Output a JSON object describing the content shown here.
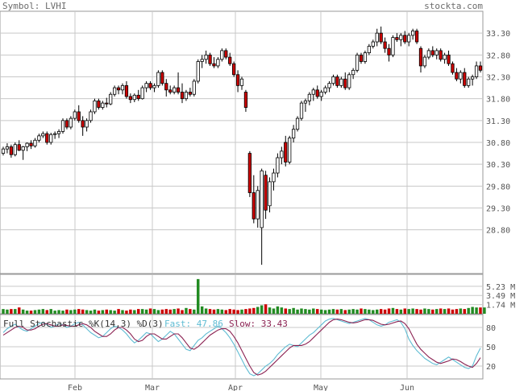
{
  "header": {
    "symbol_text": "Symbol: LVHI",
    "brand": "stockta.com"
  },
  "colors": {
    "up_candle": "#ffffff",
    "down_candle": "#cc0000",
    "volume_up": "#228b22",
    "volume_down": "#cc0000",
    "fast_line": "#5fbcd3",
    "slow_line": "#8b2252",
    "grid": "#c8c8c8",
    "label": "#555555"
  },
  "chart_data": [
    {
      "type": "candlestick",
      "panel": "price",
      "yticks": [
        33.3,
        32.8,
        32.3,
        31.8,
        31.3,
        30.8,
        30.3,
        29.8,
        29.3,
        28.8
      ],
      "ytick_labels": [
        "33.30",
        "32.80",
        "32.30",
        "31.80",
        "31.30",
        "30.80",
        "30.30",
        "29.80",
        "29.30",
        "28.80"
      ],
      "ylim": [
        27.8,
        33.8
      ],
      "xticks": [
        "Feb",
        "Mar",
        "Apr",
        "May",
        "Jun"
      ],
      "ohlc_approx": [
        [
          30.55,
          30.7,
          30.5,
          30.65
        ],
        [
          30.65,
          30.78,
          30.55,
          30.7
        ],
        [
          30.7,
          30.75,
          30.45,
          30.52
        ],
        [
          30.52,
          30.8,
          30.48,
          30.75
        ],
        [
          30.75,
          30.85,
          30.6,
          30.62
        ],
        [
          30.62,
          30.72,
          30.4,
          30.7
        ],
        [
          30.7,
          30.8,
          30.6,
          30.78
        ],
        [
          30.78,
          30.85,
          30.65,
          30.72
        ],
        [
          30.72,
          30.9,
          30.68,
          30.85
        ],
        [
          30.85,
          31.0,
          30.8,
          30.95
        ],
        [
          30.95,
          31.05,
          30.9,
          31.0
        ],
        [
          31.0,
          31.05,
          30.75,
          30.8
        ],
        [
          30.8,
          31.02,
          30.75,
          30.98
        ],
        [
          30.98,
          31.05,
          30.88,
          31.0
        ],
        [
          31.0,
          31.1,
          30.9,
          31.05
        ],
        [
          31.05,
          31.35,
          31.0,
          31.3
        ],
        [
          31.3,
          31.35,
          31.1,
          31.15
        ],
        [
          31.15,
          31.4,
          31.1,
          31.35
        ],
        [
          31.35,
          31.55,
          31.3,
          31.5
        ],
        [
          31.5,
          31.65,
          31.25,
          31.3
        ],
        [
          31.3,
          31.4,
          30.95,
          31.15
        ],
        [
          31.15,
          31.35,
          31.05,
          31.3
        ],
        [
          31.3,
          31.55,
          31.25,
          31.5
        ],
        [
          31.5,
          31.8,
          31.45,
          31.75
        ],
        [
          31.75,
          31.8,
          31.55,
          31.6
        ],
        [
          31.6,
          31.75,
          31.55,
          31.7
        ],
        [
          31.7,
          31.82,
          31.6,
          31.68
        ],
        [
          31.68,
          31.95,
          31.65,
          31.9
        ],
        [
          31.9,
          32.1,
          31.85,
          32.05
        ],
        [
          32.05,
          32.1,
          31.9,
          32.0
        ],
        [
          32.0,
          32.15,
          31.9,
          32.1
        ],
        [
          32.1,
          32.2,
          31.8,
          31.85
        ],
        [
          31.85,
          31.92,
          31.7,
          31.78
        ],
        [
          31.78,
          31.92,
          31.72,
          31.88
        ],
        [
          31.88,
          32.0,
          31.75,
          31.8
        ],
        [
          31.8,
          32.1,
          31.78,
          32.05
        ],
        [
          32.05,
          32.2,
          31.95,
          32.15
        ],
        [
          32.15,
          32.2,
          32.0,
          32.05
        ],
        [
          32.05,
          32.15,
          31.95,
          32.1
        ],
        [
          32.1,
          32.45,
          32.05,
          32.4
        ],
        [
          32.4,
          32.45,
          32.1,
          32.15
        ],
        [
          32.15,
          32.25,
          31.85,
          32.0
        ],
        [
          32.0,
          32.1,
          31.9,
          31.95
        ],
        [
          31.95,
          32.1,
          31.9,
          32.05
        ],
        [
          32.05,
          32.4,
          31.9,
          31.95
        ],
        [
          31.95,
          32.15,
          31.7,
          31.8
        ],
        [
          31.8,
          32.0,
          31.75,
          31.95
        ],
        [
          31.95,
          32.05,
          31.85,
          31.9
        ],
        [
          31.9,
          32.25,
          31.85,
          32.2
        ],
        [
          32.2,
          32.7,
          32.15,
          32.65
        ],
        [
          32.65,
          32.8,
          32.5,
          32.7
        ],
        [
          32.7,
          32.9,
          32.6,
          32.8
        ],
        [
          32.8,
          32.85,
          32.55,
          32.6
        ],
        [
          32.6,
          32.75,
          32.5,
          32.55
        ],
        [
          32.55,
          32.75,
          32.5,
          32.7
        ],
        [
          32.7,
          32.95,
          32.65,
          32.9
        ],
        [
          32.9,
          32.95,
          32.7,
          32.75
        ],
        [
          32.75,
          32.85,
          32.55,
          32.6
        ],
        [
          32.6,
          32.65,
          32.3,
          32.35
        ],
        [
          32.35,
          32.45,
          31.95,
          32.1
        ],
        [
          32.1,
          32.3,
          32.0,
          32.25
        ],
        [
          31.95,
          32.0,
          31.5,
          31.6
        ],
        [
          30.55,
          30.6,
          29.55,
          29.65
        ],
        [
          29.65,
          30.05,
          28.95,
          29.05
        ],
        [
          29.05,
          29.8,
          28.85,
          29.7
        ],
        [
          28.85,
          30.2,
          28.0,
          30.15
        ],
        [
          30.05,
          30.15,
          29.05,
          29.25
        ],
        [
          29.35,
          30.0,
          29.2,
          29.9
        ],
        [
          29.9,
          30.2,
          29.7,
          30.1
        ],
        [
          30.1,
          30.55,
          30.0,
          30.45
        ],
        [
          30.45,
          30.7,
          30.3,
          30.6
        ],
        [
          30.8,
          30.95,
          30.25,
          30.35
        ],
        [
          30.35,
          30.95,
          30.3,
          30.9
        ],
        [
          30.9,
          31.2,
          30.8,
          31.1
        ],
        [
          31.1,
          31.4,
          31.05,
          31.35
        ],
        [
          31.35,
          31.75,
          31.3,
          31.7
        ],
        [
          31.7,
          31.8,
          31.5,
          31.75
        ],
        [
          31.75,
          31.95,
          31.65,
          31.9
        ],
        [
          31.9,
          32.05,
          31.75,
          32.0
        ],
        [
          32.0,
          32.1,
          31.8,
          31.85
        ],
        [
          31.85,
          32.0,
          31.75,
          31.95
        ],
        [
          31.95,
          32.1,
          31.9,
          32.05
        ],
        [
          32.05,
          32.2,
          31.95,
          32.15
        ],
        [
          32.15,
          32.35,
          32.1,
          32.3
        ],
        [
          32.3,
          32.35,
          32.05,
          32.1
        ],
        [
          32.1,
          32.3,
          32.05,
          32.25
        ],
        [
          32.25,
          32.4,
          32.0,
          32.05
        ],
        [
          32.05,
          32.4,
          32.0,
          32.35
        ],
        [
          32.35,
          32.5,
          32.25,
          32.45
        ],
        [
          32.45,
          32.85,
          32.4,
          32.8
        ],
        [
          32.8,
          32.85,
          32.6,
          32.65
        ],
        [
          32.65,
          32.9,
          32.6,
          32.85
        ],
        [
          32.85,
          33.05,
          32.8,
          33.0
        ],
        [
          33.0,
          33.15,
          32.95,
          33.1
        ],
        [
          33.1,
          33.4,
          33.0,
          33.3
        ],
        [
          33.3,
          33.45,
          33.05,
          33.1
        ],
        [
          33.1,
          33.2,
          32.85,
          32.95
        ],
        [
          32.95,
          33.05,
          32.65,
          32.8
        ],
        [
          32.8,
          33.25,
          32.75,
          33.2
        ],
        [
          33.2,
          33.3,
          33.1,
          33.15
        ],
        [
          33.15,
          33.3,
          33.0,
          33.25
        ],
        [
          33.25,
          33.35,
          33.05,
          33.1
        ],
        [
          33.1,
          33.3,
          33.0,
          33.25
        ],
        [
          33.25,
          33.4,
          33.15,
          33.35
        ],
        [
          33.35,
          33.4,
          33.05,
          33.1
        ],
        [
          32.95,
          33.0,
          32.4,
          32.55
        ],
        [
          32.55,
          32.8,
          32.5,
          32.75
        ],
        [
          32.75,
          32.95,
          32.7,
          32.9
        ],
        [
          32.9,
          33.0,
          32.75,
          32.8
        ],
        [
          32.8,
          32.95,
          32.7,
          32.9
        ],
        [
          32.9,
          32.95,
          32.65,
          32.7
        ],
        [
          32.7,
          32.85,
          32.6,
          32.8
        ],
        [
          32.8,
          32.9,
          32.55,
          32.6
        ],
        [
          32.6,
          32.65,
          32.35,
          32.4
        ],
        [
          32.4,
          32.5,
          32.2,
          32.25
        ],
        [
          32.25,
          32.45,
          32.15,
          32.4
        ],
        [
          32.4,
          32.5,
          32.05,
          32.1
        ],
        [
          32.1,
          32.3,
          32.05,
          32.25
        ],
        [
          32.25,
          32.35,
          32.1,
          32.3
        ],
        [
          32.3,
          32.65,
          32.25,
          32.55
        ],
        [
          32.55,
          32.65,
          32.4,
          32.45
        ]
      ]
    },
    {
      "type": "bar",
      "panel": "volume",
      "ytick_labels": [
        "5.23 M",
        "3.49 M",
        "1.74 M"
      ],
      "yticks": [
        5.23,
        3.49,
        1.74
      ],
      "ylim": [
        0,
        7.5
      ],
      "values_millions_approx": [
        0.9,
        0.8,
        0.9,
        0.9,
        1.2,
        0.8,
        0.6,
        0.6,
        0.7,
        0.8,
        0.9,
        0.7,
        0.9,
        0.6,
        0.7,
        0.6,
        0.8,
        0.7,
        0.8,
        0.9,
        0.8,
        0.7,
        0.6,
        0.8,
        0.6,
        0.7,
        0.8,
        0.7,
        0.6,
        0.9,
        0.7,
        0.6,
        0.8,
        0.7,
        0.9,
        0.9,
        0.8,
        1.0,
        0.9,
        0.7,
        0.8,
        0.9,
        0.8,
        0.9,
        1.0,
        0.7,
        1.1,
        0.9,
        0.8,
        6.6,
        1.4,
        1.0,
        0.9,
        0.8,
        0.9,
        0.8,
        0.7,
        0.9,
        0.8,
        0.7,
        0.8,
        0.9,
        1.0,
        1.1,
        1.3,
        1.6,
        1.8,
        1.2,
        1.0,
        1.4,
        1.2,
        1.0,
        0.9,
        1.1,
        0.8,
        1.0,
        0.9,
        0.8,
        1.0,
        0.9,
        0.8,
        0.7,
        0.8,
        0.9,
        0.8,
        0.9,
        0.7,
        0.8,
        0.9,
        0.8,
        1.0,
        0.9,
        0.8,
        0.7,
        0.8,
        0.9,
        0.8,
        1.0,
        1.1,
        0.9,
        0.8,
        1.0,
        0.9,
        1.0,
        0.9,
        0.8,
        1.0,
        0.9,
        0.8,
        0.9,
        1.0,
        0.9,
        1.0,
        0.8,
        0.9,
        1.0,
        0.9,
        1.1,
        1.3,
        1.2,
        1.2,
        1.2
      ]
    },
    {
      "type": "line",
      "panel": "stochastic",
      "title": "Full Stochastic %K(14,3) %D(3)",
      "fast_label": "Fast: 47.86",
      "slow_label": "Slow: 33.43",
      "yticks": [
        80,
        50,
        20
      ],
      "ytick_labels": [
        "80",
        "50",
        "20"
      ],
      "ylim": [
        0,
        100
      ],
      "series": [
        {
          "name": "Fast",
          "values": [
            72,
            78,
            82,
            85,
            80,
            76,
            74,
            78,
            82,
            86,
            88,
            84,
            80,
            82,
            86,
            84,
            80,
            82,
            86,
            88,
            84,
            78,
            72,
            68,
            64,
            66,
            72,
            78,
            82,
            80,
            76,
            70,
            62,
            56,
            60,
            66,
            72,
            70,
            64,
            58,
            62,
            68,
            74,
            70,
            62,
            54,
            46,
            44,
            52,
            60,
            64,
            70,
            74,
            78,
            82,
            78,
            72,
            64,
            54,
            42,
            30,
            18,
            8,
            5,
            8,
            14,
            20,
            24,
            30,
            38,
            44,
            50,
            54,
            52,
            50,
            56,
            62,
            68,
            72,
            78,
            84,
            90,
            93,
            94,
            92,
            90,
            88,
            86,
            88,
            90,
            92,
            94,
            92,
            88,
            84,
            82,
            84,
            88,
            90,
            92,
            88,
            78,
            62,
            52,
            44,
            38,
            32,
            28,
            24,
            22,
            26,
            30,
            34,
            30,
            26,
            22,
            18,
            16,
            20,
            36,
            48
          ]
        },
        {
          "name": "Slow",
          "values": [
            68,
            72,
            76,
            80,
            82,
            80,
            76,
            76,
            78,
            82,
            85,
            86,
            84,
            82,
            82,
            84,
            83,
            82,
            82,
            84,
            86,
            84,
            80,
            74,
            70,
            66,
            66,
            70,
            76,
            80,
            80,
            76,
            70,
            62,
            58,
            60,
            66,
            70,
            70,
            66,
            62,
            62,
            66,
            70,
            70,
            64,
            56,
            48,
            46,
            50,
            56,
            62,
            68,
            72,
            76,
            78,
            78,
            74,
            66,
            56,
            44,
            32,
            20,
            10,
            6,
            8,
            12,
            18,
            24,
            30,
            36,
            42,
            48,
            52,
            52,
            52,
            54,
            58,
            64,
            70,
            76,
            82,
            88,
            92,
            93,
            92,
            90,
            88,
            87,
            88,
            90,
            92,
            92,
            91,
            88,
            85,
            84,
            85,
            87,
            89,
            90,
            86,
            78,
            66,
            54,
            46,
            40,
            34,
            30,
            26,
            24,
            26,
            28,
            31,
            30,
            27,
            23,
            20,
            18,
            24,
            33
          ]
        }
      ]
    }
  ]
}
